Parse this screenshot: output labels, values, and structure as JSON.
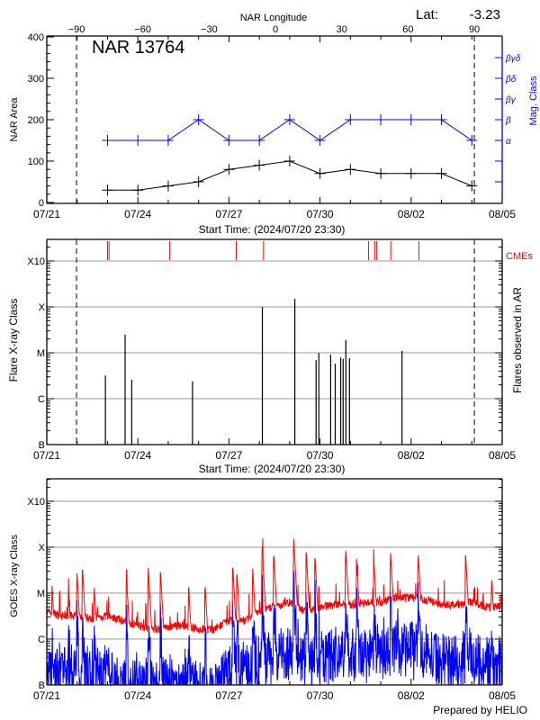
{
  "header": {
    "top_axis_title": "NAR Longitude",
    "lat_label": "Lat:",
    "lat_value": "-3.23",
    "region_title": "NAR 13764",
    "footer": "Prepared by HELIO"
  },
  "colors": {
    "area": "#000000",
    "mag_class": "#0000ff",
    "cme": "#ff0000",
    "goes_long": "#ff0000",
    "goes_short": "#0000ff",
    "grid": "#999999"
  },
  "chart_data": [
    {
      "type": "line",
      "panel": "nar",
      "xlabel": "Start Time: (2024/07/20 23:30)",
      "ylabel": "NAR Area",
      "y2label": "Mag. Class",
      "x_range": [
        "2024-07-21T00:00",
        "2024-08-05T00:00"
      ],
      "x_tick_labels": [
        "07/21",
        "07/24",
        "07/27",
        "07/30",
        "08/02",
        "08/05"
      ],
      "ylim": [
        0,
        400
      ],
      "y_ticks": [
        0,
        100,
        200,
        300,
        400
      ],
      "top_axis_ticks": [
        -90,
        -60,
        -30,
        0,
        30,
        60,
        90
      ],
      "limb_markers": [
        "2024-07-21T23:30",
        "2024-08-04T02:00"
      ],
      "mag_class_ticks": [
        {
          "value": 50,
          "label": ""
        },
        {
          "value": 100,
          "label": ""
        },
        {
          "value": 150,
          "label": "α"
        },
        {
          "value": 200,
          "label": "β"
        },
        {
          "value": 250,
          "label": "βγ"
        },
        {
          "value": 300,
          "label": "βδ"
        },
        {
          "value": 350,
          "label": "βγδ"
        }
      ],
      "dates": [
        "2024-07-23",
        "2024-07-24",
        "2024-07-25",
        "2024-07-26",
        "2024-07-27",
        "2024-07-28",
        "2024-07-29",
        "2024-07-30",
        "2024-07-31",
        "2024-08-01",
        "2024-08-02",
        "2024-08-03",
        "2024-08-04"
      ],
      "area": [
        30,
        30,
        40,
        50,
        80,
        90,
        100,
        70,
        80,
        70,
        70,
        70,
        40
      ],
      "mag_class": [
        "α",
        "α",
        "α",
        "β",
        "α",
        "α",
        "β",
        "α",
        "β",
        "β",
        "β",
        "β",
        "α"
      ]
    },
    {
      "type": "bar",
      "panel": "flares",
      "xlabel": "Start Time: (2024/07/20 23:30)",
      "ylabel": "Flare X-ray Class",
      "y2label": "Flares observed in AR",
      "cme_label": "CMEs",
      "y_scale": "log",
      "y_tick_labels": [
        "B",
        "C",
        "M",
        "X",
        "X10"
      ],
      "x_tick_labels": [
        "07/21",
        "07/24",
        "07/27",
        "07/30",
        "08/02",
        "08/05"
      ],
      "grid": true,
      "flares": [
        {
          "time": "2024-07-22T22:20",
          "class": "C3.2"
        },
        {
          "time": "2024-07-23T13:55",
          "class": "M2.5"
        },
        {
          "time": "2024-07-23T19:10",
          "class": "C2.6"
        },
        {
          "time": "2024-07-25T19:10",
          "class": "C2.4"
        },
        {
          "time": "2024-07-28T02:25",
          "class": "X1.0"
        },
        {
          "time": "2024-07-29T04:05",
          "class": "X1.5"
        },
        {
          "time": "2024-07-29T20:53",
          "class": "C6.9"
        },
        {
          "time": "2024-07-29T23:02",
          "class": "M1.0"
        },
        {
          "time": "2024-07-30T08:24",
          "class": "C9.1"
        },
        {
          "time": "2024-07-30T12:00",
          "class": "C5.8"
        },
        {
          "time": "2024-07-30T16:19",
          "class": "C7.9"
        },
        {
          "time": "2024-07-30T18:14",
          "class": "C7.4"
        },
        {
          "time": "2024-07-30T20:24",
          "class": "M1.9"
        },
        {
          "time": "2024-07-30T23:17",
          "class": "C7.6"
        },
        {
          "time": "2024-08-01T16:48",
          "class": "M1.1"
        }
      ],
      "cmes": [
        "2024-07-23T00:00",
        "2024-07-23T01:12",
        "2024-07-25T01:12",
        "2024-07-27T05:46",
        "2024-07-28T03:22",
        "2024-07-31T14:24",
        "2024-07-31T19:12",
        "2024-07-31T20:53",
        "2024-08-01T07:55",
        "2024-08-02T06:14"
      ]
    },
    {
      "type": "line",
      "panel": "goes",
      "ylabel": "GOES X-ray Class",
      "y_scale": "log",
      "y_tick_labels": [
        "B",
        "C",
        "M",
        "X",
        "X10"
      ],
      "x_tick_labels": [
        "07/21",
        "07/24",
        "07/27",
        "07/30",
        "08/02",
        "08/05"
      ],
      "grid": true,
      "sample_times_start": "2024-07-21T00:00",
      "sample_interval_hours": 12,
      "long_channel_flux": [
        4e-06,
        3.2e-06,
        3.2e-06,
        2.8e-06,
        3.2e-06,
        2.5e-06,
        2e-06,
        1.6e-06,
        1.8e-06,
        2e-06,
        1.6e-06,
        1.6e-06,
        2.5e-06,
        2.5e-06,
        4e-06,
        5e-06,
        6.3e-06,
        4e-06,
        5e-06,
        5.6e-06,
        5.6e-06,
        6.3e-06,
        6.3e-06,
        7.9e-06,
        7.9e-06,
        7.1e-06,
        5.6e-06,
        5.6e-06,
        6.3e-06,
        5e-06,
        5e-06
      ],
      "short_channel_flux": [
        2e-07,
        2.5e-07,
        2.5e-07,
        2e-07,
        2e-07,
        1.3e-07,
        1.2e-07,
        1.1e-07,
        1.1e-07,
        1.2e-07,
        1.1e-07,
        1.1e-07,
        2.5e-07,
        2.5e-07,
        4e-07,
        5e-07,
        6.3e-07,
        4e-07,
        5e-07,
        5.6e-07,
        5.6e-07,
        6.3e-07,
        6.3e-07,
        7.9e-07,
        7.9e-07,
        7.1e-07,
        4.5e-07,
        4.5e-07,
        5e-07,
        3.5e-07,
        3.5e-07
      ],
      "long_channel_peaks": [
        {
          "time": "2024-07-21T04:05",
          "flux": 1.5e-05
        },
        {
          "time": "2024-07-21T17:02",
          "flux": 1.1e-05
        },
        {
          "time": "2024-07-21T23:46",
          "flux": 3.2e-05
        },
        {
          "time": "2024-07-22T04:05",
          "flux": 4.1e-05
        },
        {
          "time": "2024-07-22T13:26",
          "flux": 1.5e-05
        },
        {
          "time": "2024-07-23T14:53",
          "flux": 2.6e-05
        },
        {
          "time": "2024-07-24T08:10",
          "flux": 3.8e-05
        },
        {
          "time": "2024-07-24T17:46",
          "flux": 3.3e-05
        },
        {
          "time": "2024-07-25T16:05",
          "flux": 1.4e-05
        },
        {
          "time": "2024-07-26T05:02",
          "flux": 1.7e-05
        },
        {
          "time": "2024-07-27T02:53",
          "flux": 4.5e-05
        },
        {
          "time": "2024-07-27T06:14",
          "flux": 3.2e-05
        },
        {
          "time": "2024-07-27T18:43",
          "flux": 3.6e-05
        },
        {
          "time": "2024-07-28T02:10",
          "flux": 0.000105
        },
        {
          "time": "2024-07-28T11:17",
          "flux": 8.1e-05
        },
        {
          "time": "2024-07-29T03:07",
          "flux": 0.00016
        },
        {
          "time": "2024-07-29T12:58",
          "flux": 8.9e-05
        },
        {
          "time": "2024-07-29T19:55",
          "flux": 6.9e-05
        },
        {
          "time": "2024-07-30T20:10",
          "flux": 9.8e-05
        },
        {
          "time": "2024-07-31T04:48",
          "flux": 5.6e-05
        },
        {
          "time": "2024-07-31T18:29",
          "flux": 5.8e-05
        },
        {
          "time": "2024-08-01T07:41",
          "flux": 8.5e-05
        },
        {
          "time": "2024-08-02T05:31",
          "flux": 7.8e-05
        },
        {
          "time": "2024-08-03T18:58",
          "flux": 7.6e-05
        },
        {
          "time": "2024-08-04T15:36",
          "flux": 2.3e-05
        },
        {
          "time": "2024-08-04T22:48",
          "flux": 1.1e-05
        }
      ]
    }
  ]
}
